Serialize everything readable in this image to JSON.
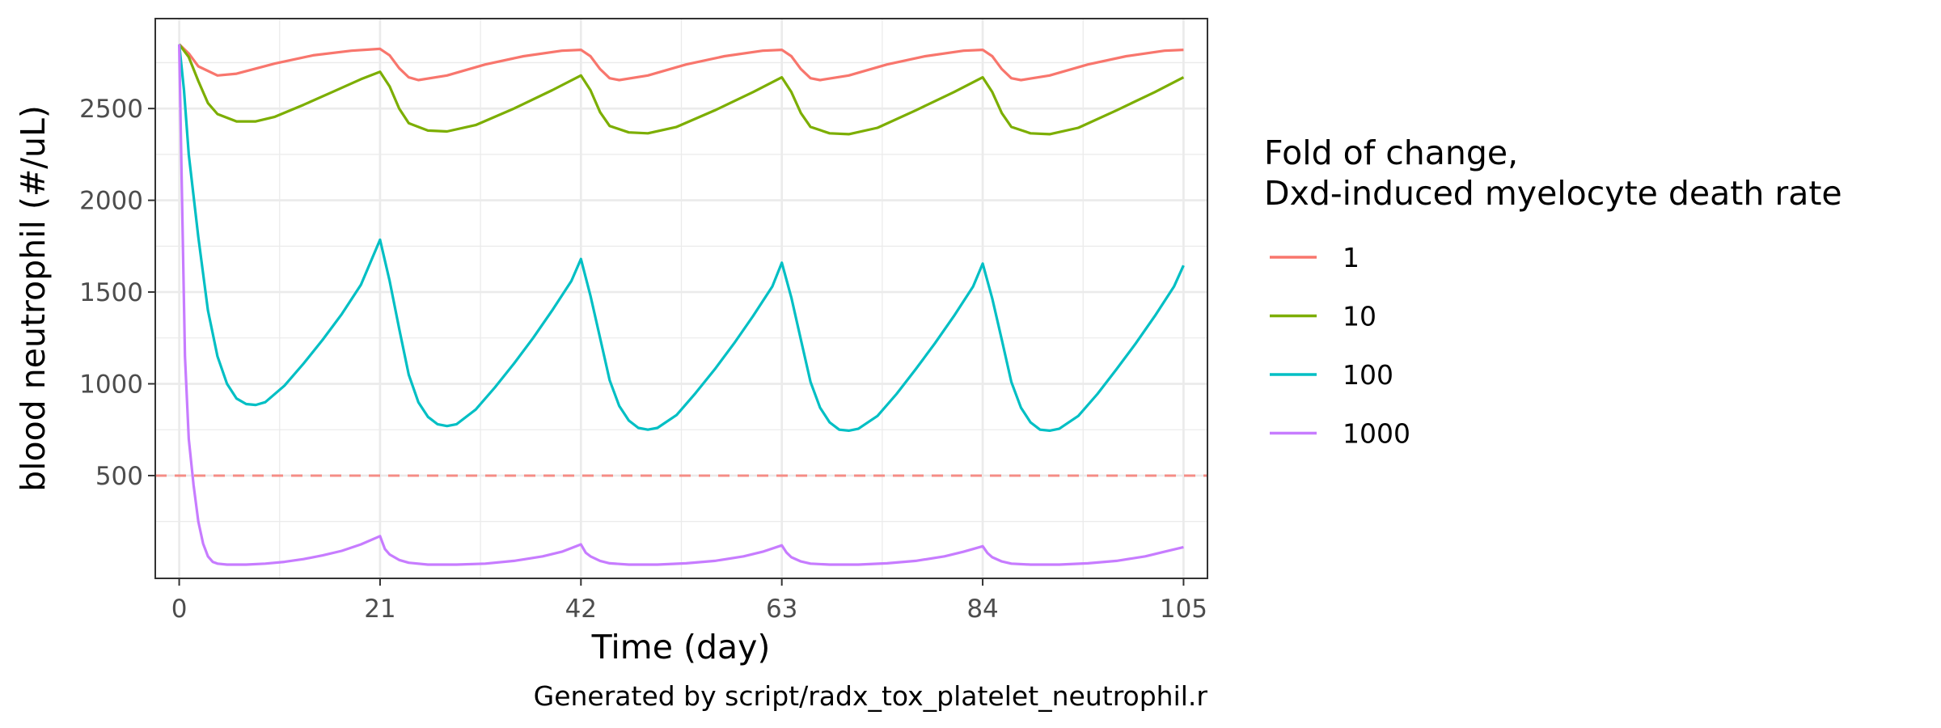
{
  "chart_data": {
    "type": "line",
    "title": "",
    "xlabel": "Time (day)",
    "ylabel": "blood neutrophil (#/uL)",
    "caption": "Generated by script/radx_tox_platelet_neutrophil.r",
    "xlim": [
      -2.5,
      107.5
    ],
    "ylim": [
      -60,
      2990
    ],
    "x_ticks": [
      0,
      21,
      42,
      63,
      84,
      105
    ],
    "y_ticks": [
      500,
      1000,
      1500,
      2000,
      2500
    ],
    "x_tick_labels": [
      "0",
      "21",
      "42",
      "63",
      "84",
      "105"
    ],
    "y_tick_labels": [
      "500",
      "1000",
      "1500",
      "2000",
      "2500"
    ],
    "grid": true,
    "legend": {
      "title_line1": "Fold of change,",
      "title_line2": "Dxd-induced myelocyte death rate",
      "position": "right"
    },
    "reference_line": {
      "y": 500,
      "style": "dashed",
      "color": "#F8766D"
    },
    "series": [
      {
        "name": "1",
        "color": "#F8766D",
        "points": [
          [
            0,
            2850
          ],
          [
            1,
            2800
          ],
          [
            2,
            2730
          ],
          [
            4,
            2680
          ],
          [
            6,
            2690
          ],
          [
            10,
            2745
          ],
          [
            14,
            2790
          ],
          [
            18,
            2815
          ],
          [
            21,
            2825
          ],
          [
            22,
            2790
          ],
          [
            23,
            2720
          ],
          [
            24,
            2670
          ],
          [
            25,
            2655
          ],
          [
            28,
            2680
          ],
          [
            32,
            2740
          ],
          [
            36,
            2785
          ],
          [
            40,
            2815
          ],
          [
            42,
            2820
          ],
          [
            43,
            2785
          ],
          [
            44,
            2715
          ],
          [
            45,
            2665
          ],
          [
            46,
            2655
          ],
          [
            49,
            2680
          ],
          [
            53,
            2740
          ],
          [
            57,
            2785
          ],
          [
            61,
            2815
          ],
          [
            63,
            2820
          ],
          [
            64,
            2785
          ],
          [
            65,
            2715
          ],
          [
            66,
            2665
          ],
          [
            67,
            2655
          ],
          [
            70,
            2680
          ],
          [
            74,
            2740
          ],
          [
            78,
            2785
          ],
          [
            82,
            2815
          ],
          [
            84,
            2820
          ],
          [
            85,
            2785
          ],
          [
            86,
            2715
          ],
          [
            87,
            2665
          ],
          [
            88,
            2655
          ],
          [
            91,
            2680
          ],
          [
            95,
            2740
          ],
          [
            99,
            2785
          ],
          [
            103,
            2815
          ],
          [
            105,
            2820
          ]
        ]
      },
      {
        "name": "10",
        "color": "#7CAE00",
        "points": [
          [
            0,
            2850
          ],
          [
            1,
            2780
          ],
          [
            2,
            2650
          ],
          [
            3,
            2530
          ],
          [
            4,
            2470
          ],
          [
            6,
            2430
          ],
          [
            8,
            2430
          ],
          [
            10,
            2455
          ],
          [
            13,
            2520
          ],
          [
            16,
            2590
          ],
          [
            19,
            2660
          ],
          [
            21,
            2700
          ],
          [
            22,
            2620
          ],
          [
            23,
            2500
          ],
          [
            24,
            2420
          ],
          [
            26,
            2380
          ],
          [
            28,
            2375
          ],
          [
            31,
            2410
          ],
          [
            35,
            2500
          ],
          [
            39,
            2600
          ],
          [
            42,
            2680
          ],
          [
            43,
            2600
          ],
          [
            44,
            2480
          ],
          [
            45,
            2405
          ],
          [
            47,
            2370
          ],
          [
            49,
            2365
          ],
          [
            52,
            2400
          ],
          [
            56,
            2490
          ],
          [
            60,
            2590
          ],
          [
            63,
            2670
          ],
          [
            64,
            2590
          ],
          [
            65,
            2475
          ],
          [
            66,
            2400
          ],
          [
            68,
            2365
          ],
          [
            70,
            2360
          ],
          [
            73,
            2395
          ],
          [
            77,
            2490
          ],
          [
            81,
            2590
          ],
          [
            84,
            2670
          ],
          [
            85,
            2590
          ],
          [
            86,
            2475
          ],
          [
            87,
            2400
          ],
          [
            89,
            2365
          ],
          [
            91,
            2360
          ],
          [
            94,
            2395
          ],
          [
            98,
            2490
          ],
          [
            102,
            2590
          ],
          [
            105,
            2670
          ]
        ]
      },
      {
        "name": "100",
        "color": "#00BFC4",
        "points": [
          [
            0,
            2850
          ],
          [
            0.5,
            2600
          ],
          [
            1,
            2250
          ],
          [
            2,
            1800
          ],
          [
            3,
            1400
          ],
          [
            4,
            1150
          ],
          [
            5,
            1000
          ],
          [
            6,
            920
          ],
          [
            7,
            890
          ],
          [
            8,
            885
          ],
          [
            9,
            900
          ],
          [
            11,
            990
          ],
          [
            13,
            1110
          ],
          [
            15,
            1240
          ],
          [
            17,
            1380
          ],
          [
            19,
            1540
          ],
          [
            21,
            1785
          ],
          [
            22,
            1560
          ],
          [
            23,
            1300
          ],
          [
            24,
            1050
          ],
          [
            25,
            900
          ],
          [
            26,
            820
          ],
          [
            27,
            780
          ],
          [
            28,
            770
          ],
          [
            29,
            780
          ],
          [
            31,
            860
          ],
          [
            33,
            980
          ],
          [
            35,
            1110
          ],
          [
            37,
            1250
          ],
          [
            39,
            1400
          ],
          [
            41,
            1560
          ],
          [
            42,
            1680
          ],
          [
            43,
            1480
          ],
          [
            44,
            1250
          ],
          [
            45,
            1020
          ],
          [
            46,
            880
          ],
          [
            47,
            800
          ],
          [
            48,
            760
          ],
          [
            49,
            750
          ],
          [
            50,
            760
          ],
          [
            52,
            830
          ],
          [
            54,
            950
          ],
          [
            56,
            1080
          ],
          [
            58,
            1220
          ],
          [
            60,
            1370
          ],
          [
            62,
            1530
          ],
          [
            63,
            1660
          ],
          [
            64,
            1470
          ],
          [
            65,
            1240
          ],
          [
            66,
            1010
          ],
          [
            67,
            870
          ],
          [
            68,
            790
          ],
          [
            69,
            750
          ],
          [
            70,
            745
          ],
          [
            71,
            755
          ],
          [
            73,
            825
          ],
          [
            75,
            945
          ],
          [
            77,
            1080
          ],
          [
            79,
            1220
          ],
          [
            81,
            1370
          ],
          [
            83,
            1530
          ],
          [
            84,
            1655
          ],
          [
            85,
            1465
          ],
          [
            86,
            1240
          ],
          [
            87,
            1010
          ],
          [
            88,
            870
          ],
          [
            89,
            790
          ],
          [
            90,
            750
          ],
          [
            91,
            745
          ],
          [
            92,
            755
          ],
          [
            94,
            825
          ],
          [
            96,
            945
          ],
          [
            98,
            1080
          ],
          [
            100,
            1220
          ],
          [
            102,
            1370
          ],
          [
            104,
            1530
          ],
          [
            105,
            1645
          ]
        ]
      },
      {
        "name": "1000",
        "color": "#C77CFF",
        "points": [
          [
            0,
            2850
          ],
          [
            0.3,
            2000
          ],
          [
            0.6,
            1150
          ],
          [
            1,
            700
          ],
          [
            1.5,
            450
          ],
          [
            2,
            250
          ],
          [
            2.5,
            130
          ],
          [
            3,
            60
          ],
          [
            3.5,
            30
          ],
          [
            4,
            20
          ],
          [
            5,
            15
          ],
          [
            7,
            15
          ],
          [
            9,
            20
          ],
          [
            11,
            30
          ],
          [
            13,
            45
          ],
          [
            15,
            65
          ],
          [
            17,
            90
          ],
          [
            19,
            125
          ],
          [
            21,
            170
          ],
          [
            21.5,
            100
          ],
          [
            22,
            70
          ],
          [
            23,
            40
          ],
          [
            24,
            25
          ],
          [
            26,
            15
          ],
          [
            29,
            15
          ],
          [
            32,
            20
          ],
          [
            35,
            35
          ],
          [
            38,
            60
          ],
          [
            40,
            85
          ],
          [
            42,
            125
          ],
          [
            42.5,
            80
          ],
          [
            43,
            60
          ],
          [
            44,
            35
          ],
          [
            45,
            22
          ],
          [
            47,
            15
          ],
          [
            50,
            15
          ],
          [
            53,
            22
          ],
          [
            56,
            35
          ],
          [
            59,
            60
          ],
          [
            61,
            85
          ],
          [
            63,
            120
          ],
          [
            63.5,
            80
          ],
          [
            64,
            55
          ],
          [
            65,
            32
          ],
          [
            66,
            20
          ],
          [
            68,
            15
          ],
          [
            71,
            15
          ],
          [
            74,
            22
          ],
          [
            77,
            35
          ],
          [
            80,
            60
          ],
          [
            82,
            85
          ],
          [
            84,
            115
          ],
          [
            84.5,
            78
          ],
          [
            85,
            55
          ],
          [
            86,
            32
          ],
          [
            87,
            20
          ],
          [
            89,
            15
          ],
          [
            92,
            15
          ],
          [
            95,
            22
          ],
          [
            98,
            35
          ],
          [
            101,
            60
          ],
          [
            103,
            85
          ],
          [
            105,
            110
          ]
        ]
      }
    ]
  }
}
